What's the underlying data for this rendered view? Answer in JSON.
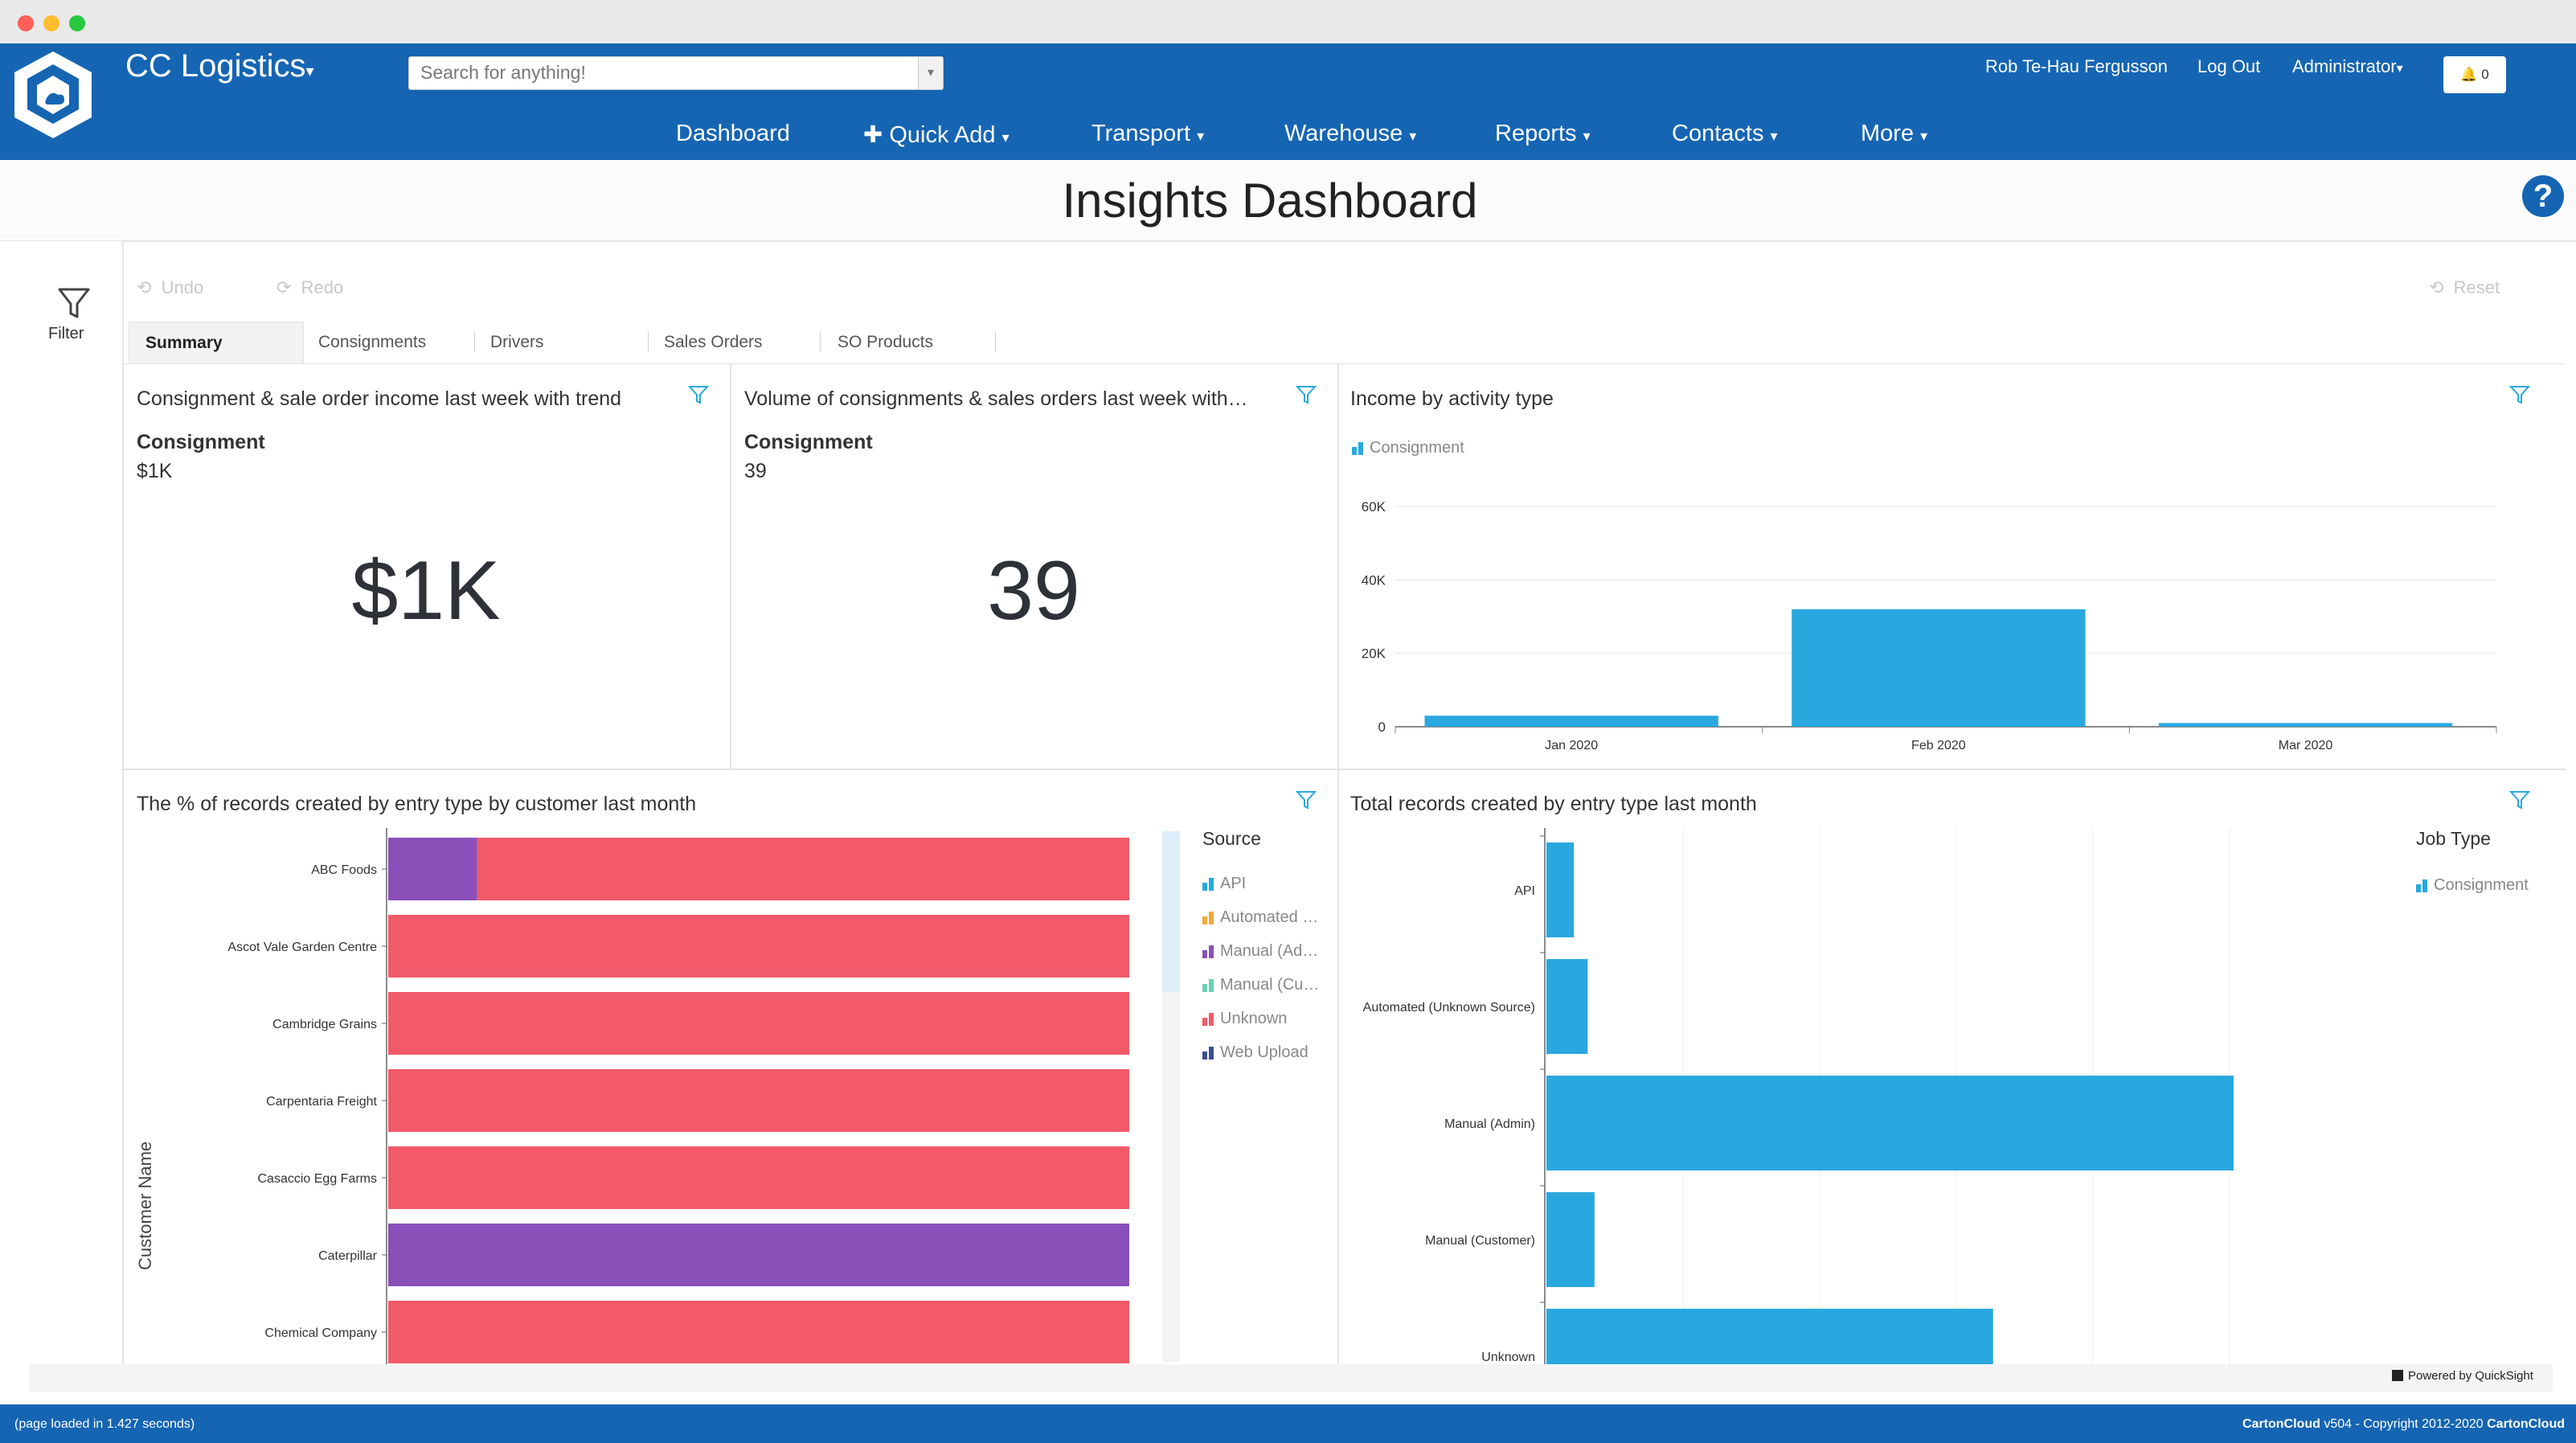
{
  "app": {
    "brand": "CC Logistics",
    "search_placeholder": "Search for anything!",
    "user_name": "Rob Te-Hau Fergusson",
    "logout": "Log Out",
    "role": "Administrator",
    "notification_count": "0"
  },
  "nav": {
    "items": [
      {
        "label": "Dashboard"
      },
      {
        "label": "Quick Add"
      },
      {
        "label": "Transport"
      },
      {
        "label": "Warehouse"
      },
      {
        "label": "Reports"
      },
      {
        "label": "Contacts"
      },
      {
        "label": "More"
      }
    ]
  },
  "page": {
    "title": "Insights Dashboard"
  },
  "filter": {
    "label": "Filter"
  },
  "toolbar": {
    "undo": "Undo",
    "redo": "Redo",
    "reset": "Reset"
  },
  "tabs": [
    {
      "label": "Summary",
      "active": true
    },
    {
      "label": "Consignments"
    },
    {
      "label": "Drivers"
    },
    {
      "label": "Sales Orders"
    },
    {
      "label": "SO Products"
    }
  ],
  "kpi1": {
    "title": "Consignment & sale order income last week with trend",
    "label": "Consignment",
    "small_value": "$1K",
    "big_value": "$1K"
  },
  "kpi2": {
    "title": "Volume of consignments & sales orders last week with…",
    "label": "Consignment",
    "small_value": "39",
    "big_value": "39"
  },
  "income_chart": {
    "title": "Income by activity type",
    "legend": "Consignment",
    "y_ticks": [
      "0",
      "20K",
      "40K",
      "60K"
    ]
  },
  "pct_chart": {
    "title": "The % of records created by entry type by customer last month",
    "y_axis_title": "Customer Name",
    "legend_title": "Source",
    "legend": [
      "API",
      "Automated …",
      "Manual (Ad…",
      "Manual (Cu…",
      "Unknown",
      "Web Upload"
    ]
  },
  "total_chart": {
    "title": "Total records created by entry type last month",
    "legend_title": "Job Type",
    "legend": "Consignment"
  },
  "powered_by": "Powered by QuickSight",
  "footer": {
    "load_time": "(page loaded in 1.427 seconds)",
    "brand1": "CartonCloud",
    "copyright": "v504 - Copyright 2012-2020",
    "brand2": "CartonCloud"
  },
  "colors": {
    "nav_blue": "#1565b3",
    "bar_blue": "#29a8df",
    "unknown_red": "#f25a6a",
    "manual_admin_purple": "#8a4fb8",
    "automated_orange": "#f3a93a",
    "manual_customer_teal": "#6dcfb0",
    "web_upload_navy": "#3a4f8f"
  },
  "chart_data": [
    {
      "type": "bar",
      "title": "Income by activity type",
      "categories": [
        "Jan 2020",
        "Feb 2020",
        "Mar 2020"
      ],
      "series": [
        {
          "name": "Consignment",
          "values": [
            3000,
            32000,
            1000
          ]
        }
      ],
      "ylim": [
        0,
        60000
      ],
      "grid": true,
      "legend_position": "top-left"
    },
    {
      "type": "bar",
      "orientation": "horizontal-stacked-percent",
      "title": "The % of records created by entry type by customer last month",
      "ylabel": "Customer Name",
      "categories": [
        "ABC Foods",
        "Ascot Vale Garden Centre",
        "Cambridge Grains",
        "Carpentaria Freight",
        "Casaccio Egg Farms",
        "Caterpillar",
        "Chemical Company"
      ],
      "series": [
        {
          "name": "Manual (Ad…",
          "values": [
            12,
            0,
            0,
            0,
            0,
            100,
            0
          ]
        },
        {
          "name": "Unknown",
          "values": [
            88,
            100,
            100,
            100,
            100,
            0,
            100
          ]
        }
      ],
      "legend_position": "right"
    },
    {
      "type": "bar",
      "orientation": "horizontal",
      "title": "Total records created by entry type last month",
      "categories": [
        "API",
        "Automated (Unknown Source)",
        "Manual (Admin)",
        "Manual (Customer)",
        "Unknown"
      ],
      "series": [
        {
          "name": "Consignment",
          "values": [
            4,
            6,
            100,
            7,
            65
          ]
        }
      ],
      "legend_position": "right"
    }
  ]
}
